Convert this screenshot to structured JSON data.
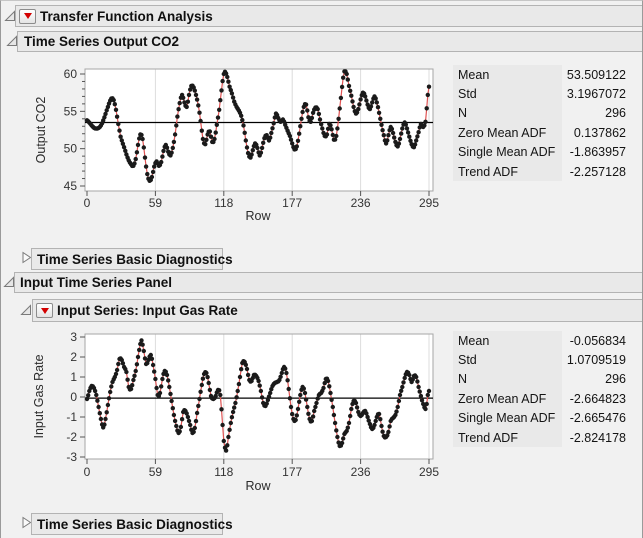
{
  "outline": {
    "transfer_function": "Transfer Function Analysis",
    "output_series": "Time Series Output CO2",
    "diagnostics_output": "Time Series Basic Diagnostics",
    "input_panel": "Input Time Series Panel",
    "input_series": "Input Series: Input Gas Rate",
    "diagnostics_input": "Time Series Basic Diagnostics"
  },
  "stats_tables": [
    {
      "id": "output-co2-stats",
      "rows": [
        {
          "label": "Mean",
          "value": "53.509122"
        },
        {
          "label": "Std",
          "value": "3.1967072"
        },
        {
          "label": "N",
          "value": "296"
        },
        {
          "label": "Zero Mean ADF",
          "value": "0.137862"
        },
        {
          "label": "Single Mean ADF",
          "value": "-1.863957"
        },
        {
          "label": "Trend ADF",
          "value": "-2.257128"
        }
      ]
    },
    {
      "id": "input-gas-stats",
      "rows": [
        {
          "label": "Mean",
          "value": "-0.056834"
        },
        {
          "label": "Std",
          "value": "1.0709519"
        },
        {
          "label": "N",
          "value": "296"
        },
        {
          "label": "Zero Mean ADF",
          "value": "-2.664823"
        },
        {
          "label": "Single Mean ADF",
          "value": "-2.665476"
        },
        {
          "label": "Trend ADF",
          "value": "-2.824178"
        }
      ]
    }
  ],
  "chart_data": [
    {
      "type": "line",
      "title": "Time Series Output CO2",
      "series_name": "Output CO2",
      "xlabel": "Row",
      "ylabel": "Output CO2",
      "xticks": [
        0,
        59,
        118,
        177,
        236,
        295
      ],
      "yticks": [
        45,
        50,
        55,
        60
      ],
      "y_minor_step": 1,
      "xlim": [
        0,
        295
      ],
      "ylim": [
        44.33,
        60.67
      ],
      "n_points": 296,
      "mean_line": 53.509122,
      "marker_color": "#1a1a1a",
      "line_color": "#e05252",
      "control_points": [
        [
          0,
          53.8
        ],
        [
          3,
          53.3
        ],
        [
          6,
          52.8
        ],
        [
          9,
          52.7
        ],
        [
          12,
          53.1
        ],
        [
          15,
          54.2
        ],
        [
          18,
          55.6
        ],
        [
          21,
          56.7
        ],
        [
          23,
          56.5
        ],
        [
          25,
          55.2
        ],
        [
          27,
          53.3
        ],
        [
          29,
          51.6
        ],
        [
          32,
          50.2
        ],
        [
          35,
          48.8
        ],
        [
          38,
          47.9
        ],
        [
          40,
          47.7
        ],
        [
          42,
          48.6
        ],
        [
          44,
          50.5
        ],
        [
          46,
          51.9
        ],
        [
          48,
          51.3
        ],
        [
          50,
          48.8
        ],
        [
          52,
          46.6
        ],
        [
          54,
          45.7
        ],
        [
          56,
          46.2
        ],
        [
          58,
          47.6
        ],
        [
          60,
          48.3
        ],
        [
          62,
          47.7
        ],
        [
          64,
          48.2
        ],
        [
          66,
          49.7
        ],
        [
          68,
          50.5
        ],
        [
          70,
          49.6
        ],
        [
          72,
          49.1
        ],
        [
          74,
          50.1
        ],
        [
          76,
          51.9
        ],
        [
          78,
          54.3
        ],
        [
          80,
          56.1
        ],
        [
          82,
          57.2
        ],
        [
          84,
          56.2
        ],
        [
          86,
          55.6
        ],
        [
          88,
          57.2
        ],
        [
          90,
          58.4
        ],
        [
          92,
          58.2
        ],
        [
          94,
          57.2
        ],
        [
          96,
          55.8
        ],
        [
          98,
          53.7
        ],
        [
          100,
          51.3
        ],
        [
          102,
          50.6
        ],
        [
          104,
          51.9
        ],
        [
          106,
          52.3
        ],
        [
          108,
          50.9
        ],
        [
          110,
          51.3
        ],
        [
          112,
          53.2
        ],
        [
          114,
          55.2
        ],
        [
          116,
          57.8
        ],
        [
          118,
          60.0
        ],
        [
          119,
          60.3
        ],
        [
          121,
          59.6
        ],
        [
          123,
          58.3
        ],
        [
          125,
          57.4
        ],
        [
          127,
          56.3
        ],
        [
          129,
          55.6
        ],
        [
          131,
          55.1
        ],
        [
          133,
          54.4
        ],
        [
          135,
          53.1
        ],
        [
          137,
          51.1
        ],
        [
          139,
          49.4
        ],
        [
          141,
          48.8
        ],
        [
          143,
          49.8
        ],
        [
          145,
          50.7
        ],
        [
          147,
          50.1
        ],
        [
          149,
          49.1
        ],
        [
          151,
          50.1
        ],
        [
          153,
          51.4
        ],
        [
          155,
          51.8
        ],
        [
          157,
          51.1
        ],
        [
          159,
          52.1
        ],
        [
          161,
          53.4
        ],
        [
          163,
          54.7
        ],
        [
          165,
          54.1
        ],
        [
          167,
          53.6
        ],
        [
          169,
          53.9
        ],
        [
          171,
          53.2
        ],
        [
          173,
          52.4
        ],
        [
          175,
          51.7
        ],
        [
          177,
          50.7
        ],
        [
          179,
          49.9
        ],
        [
          181,
          50.3
        ],
        [
          183,
          52.0
        ],
        [
          185,
          54.0
        ],
        [
          187,
          55.6
        ],
        [
          189,
          55.9
        ],
        [
          191,
          54.2
        ],
        [
          193,
          53.6
        ],
        [
          195,
          54.8
        ],
        [
          197,
          55.5
        ],
        [
          199,
          55.3
        ],
        [
          201,
          53.9
        ],
        [
          203,
          52.7
        ],
        [
          205,
          51.7
        ],
        [
          207,
          51.9
        ],
        [
          209,
          53.3
        ],
        [
          211,
          52.6
        ],
        [
          213,
          51.2
        ],
        [
          215,
          51.7
        ],
        [
          217,
          54.0
        ],
        [
          219,
          56.8
        ],
        [
          221,
          59.5
        ],
        [
          222,
          60.4
        ],
        [
          224,
          60.0
        ],
        [
          226,
          58.4
        ],
        [
          228,
          57.1
        ],
        [
          230,
          55.6
        ],
        [
          232,
          54.7
        ],
        [
          234,
          55.3
        ],
        [
          236,
          56.6
        ],
        [
          238,
          57.5
        ],
        [
          240,
          57.0
        ],
        [
          242,
          55.9
        ],
        [
          244,
          55.3
        ],
        [
          246,
          56.2
        ],
        [
          248,
          57.0
        ],
        [
          250,
          56.2
        ],
        [
          252,
          54.8
        ],
        [
          254,
          53.2
        ],
        [
          256,
          51.8
        ],
        [
          258,
          50.7
        ],
        [
          260,
          51.8
        ],
        [
          262,
          52.9
        ],
        [
          264,
          52.1
        ],
        [
          266,
          50.9
        ],
        [
          268,
          50.3
        ],
        [
          270,
          51.3
        ],
        [
          272,
          52.7
        ],
        [
          274,
          53.5
        ],
        [
          276,
          52.7
        ],
        [
          278,
          51.6
        ],
        [
          280,
          50.6
        ],
        [
          282,
          50.2
        ],
        [
          284,
          51.1
        ],
        [
          286,
          52.2
        ],
        [
          288,
          53.3
        ],
        [
          290,
          52.9
        ],
        [
          292,
          53.6
        ],
        [
          293,
          55.4
        ],
        [
          294,
          57.2
        ],
        [
          295,
          58.3
        ]
      ]
    },
    {
      "type": "line",
      "title": "Input Series: Input Gas Rate",
      "series_name": "Input Gas Rate",
      "xlabel": "Row",
      "ylabel": "Input Gas Rate",
      "xticks": [
        0,
        59,
        118,
        177,
        236,
        295
      ],
      "yticks": [
        -3,
        -2,
        -1,
        0,
        1,
        2,
        3
      ],
      "y_minor_step": 0,
      "xlim": [
        0,
        295
      ],
      "ylim": [
        -3.1,
        3.15
      ],
      "n_points": 296,
      "mean_line": -0.056834,
      "marker_color": "#1a1a1a",
      "line_color": "#e05252",
      "control_points": [
        [
          0,
          -0.1
        ],
        [
          2,
          0.3
        ],
        [
          4,
          0.55
        ],
        [
          6,
          0.45
        ],
        [
          8,
          0.1
        ],
        [
          10,
          -0.5
        ],
        [
          12,
          -1.1
        ],
        [
          14,
          -1.52
        ],
        [
          16,
          -1.1
        ],
        [
          18,
          -0.4
        ],
        [
          20,
          0.25
        ],
        [
          22,
          0.75
        ],
        [
          24,
          1.0
        ],
        [
          26,
          1.35
        ],
        [
          28,
          1.9
        ],
        [
          30,
          1.85
        ],
        [
          32,
          1.5
        ],
        [
          34,
          1.25
        ],
        [
          36,
          0.5
        ],
        [
          38,
          0.4
        ],
        [
          40,
          0.85
        ],
        [
          42,
          1.3
        ],
        [
          44,
          2.0
        ],
        [
          46,
          2.65
        ],
        [
          47,
          2.83
        ],
        [
          49,
          2.3
        ],
        [
          51,
          1.65
        ],
        [
          53,
          1.85
        ],
        [
          55,
          2.1
        ],
        [
          57,
          1.6
        ],
        [
          59,
          0.9
        ],
        [
          61,
          0.1
        ],
        [
          63,
          0.2
        ],
        [
          65,
          0.9
        ],
        [
          67,
          1.3
        ],
        [
          69,
          1.1
        ],
        [
          71,
          0.5
        ],
        [
          73,
          -0.2
        ],
        [
          75,
          -0.9
        ],
        [
          77,
          -1.45
        ],
        [
          79,
          -1.8
        ],
        [
          81,
          -1.5
        ],
        [
          83,
          -0.75
        ],
        [
          85,
          -0.7
        ],
        [
          87,
          -1.0
        ],
        [
          89,
          -1.4
        ],
        [
          91,
          -1.8
        ],
        [
          93,
          -1.55
        ],
        [
          95,
          -0.8
        ],
        [
          97,
          -0.1
        ],
        [
          99,
          0.6
        ],
        [
          101,
          1.15
        ],
        [
          103,
          1.2
        ],
        [
          105,
          0.7
        ],
        [
          107,
          0.05
        ],
        [
          109,
          -0.1
        ],
        [
          111,
          0.05
        ],
        [
          113,
          0.35
        ],
        [
          115,
          0.1
        ],
        [
          117,
          -1.4
        ],
        [
          118,
          -2.2
        ],
        [
          120,
          -2.68
        ],
        [
          122,
          -2.0
        ],
        [
          124,
          -1.3
        ],
        [
          126,
          -0.75
        ],
        [
          128,
          -0.3
        ],
        [
          130,
          0.3
        ],
        [
          132,
          1.0
        ],
        [
          134,
          1.7
        ],
        [
          136,
          1.75
        ],
        [
          138,
          1.4
        ],
        [
          140,
          0.85
        ],
        [
          142,
          0.8
        ],
        [
          144,
          1.1
        ],
        [
          146,
          1.05
        ],
        [
          148,
          0.8
        ],
        [
          150,
          0.3
        ],
        [
          152,
          -0.3
        ],
        [
          154,
          -0.45
        ],
        [
          156,
          -0.15
        ],
        [
          158,
          0.2
        ],
        [
          160,
          0.55
        ],
        [
          162,
          0.7
        ],
        [
          164,
          0.75
        ],
        [
          166,
          0.85
        ],
        [
          168,
          1.2
        ],
        [
          170,
          1.5
        ],
        [
          172,
          1.2
        ],
        [
          174,
          0.4
        ],
        [
          176,
          -0.5
        ],
        [
          178,
          -1.1
        ],
        [
          180,
          -1.15
        ],
        [
          182,
          -0.6
        ],
        [
          184,
          0.1
        ],
        [
          186,
          0.5
        ],
        [
          188,
          0.2
        ],
        [
          190,
          -0.5
        ],
        [
          192,
          -1.1
        ],
        [
          194,
          -1.2
        ],
        [
          196,
          -0.7
        ],
        [
          198,
          -0.3
        ],
        [
          200,
          0.1
        ],
        [
          202,
          0.2
        ],
        [
          204,
          0.45
        ],
        [
          206,
          0.9
        ],
        [
          208,
          0.8
        ],
        [
          210,
          0.2
        ],
        [
          212,
          -0.5
        ],
        [
          214,
          -1.3
        ],
        [
          216,
          -2.0
        ],
        [
          218,
          -2.45
        ],
        [
          220,
          -2.3
        ],
        [
          222,
          -1.85
        ],
        [
          224,
          -1.7
        ],
        [
          226,
          -1.3
        ],
        [
          228,
          -0.6
        ],
        [
          230,
          -0.2
        ],
        [
          232,
          -0.3
        ],
        [
          234,
          -0.75
        ],
        [
          236,
          -0.95
        ],
        [
          238,
          -0.8
        ],
        [
          240,
          -0.7
        ],
        [
          242,
          -1.0
        ],
        [
          244,
          -1.35
        ],
        [
          246,
          -1.6
        ],
        [
          248,
          -1.4
        ],
        [
          250,
          -1.0
        ],
        [
          252,
          -0.85
        ],
        [
          254,
          -1.45
        ],
        [
          256,
          -1.95
        ],
        [
          258,
          -2.0
        ],
        [
          260,
          -1.75
        ],
        [
          262,
          -1.2
        ],
        [
          264,
          -1.05
        ],
        [
          266,
          -0.9
        ],
        [
          268,
          -0.5
        ],
        [
          270,
          0.1
        ],
        [
          272,
          0.5
        ],
        [
          274,
          0.95
        ],
        [
          276,
          1.25
        ],
        [
          278,
          1.1
        ],
        [
          280,
          0.75
        ],
        [
          282,
          1.05
        ],
        [
          284,
          1.0
        ],
        [
          286,
          0.5
        ],
        [
          288,
          0.05
        ],
        [
          290,
          -0.35
        ],
        [
          292,
          -0.6
        ],
        [
          293,
          -0.35
        ],
        [
          294,
          0.1
        ],
        [
          295,
          0.3
        ]
      ]
    }
  ],
  "colors": {
    "page_bg": "#f1f1f1",
    "panel_header_bg": "#e9e9e9",
    "panel_header_border": "#b3b3b3",
    "plot_bg": "#ffffff",
    "plot_border": "#a6a6a6",
    "grid": "#dcdcdc",
    "tick": "#555555",
    "mean_line": "#000000",
    "red_triangle": "#d30000",
    "stats_label_bg": "#e9e9e9"
  }
}
